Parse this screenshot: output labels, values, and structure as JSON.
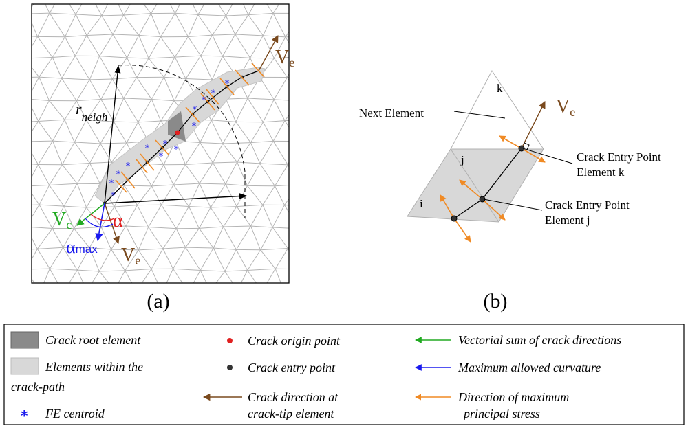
{
  "panel_a": {
    "caption": "(a)",
    "r_label": "r",
    "r_subscript": "neigh",
    "ve_label": "V",
    "ve_subscript": "e",
    "vc_label": "V",
    "vc_subscript": "c",
    "alpha_label": "α",
    "alpha_max_label": "α",
    "alpha_max_subscript": "max"
  },
  "panel_b": {
    "caption": "(b)",
    "next_element": "Next Element",
    "node_k": "k",
    "node_j": "j",
    "node_i": "i",
    "ve_label": "V",
    "ve_subscript": "e",
    "entry_k_line1": "Crack Entry Point",
    "entry_k_line2": "Element k",
    "entry_j_line1": "Crack Entry Point",
    "entry_j_line2": "Element j"
  },
  "legend": {
    "crack_root": "Crack  root element",
    "elements_line1": "Elements within the",
    "elements_line2": "crack-path",
    "fe_centroid": "FE  centroid",
    "origin_point": "Crack origin point",
    "entry_point": "Crack entry point",
    "direction_line1": "Crack direction at",
    "direction_line2": "crack-tip element",
    "vector_sum": "Vectorial sum of crack directions",
    "max_curvature": "Maximum allowed curvature",
    "max_stress_line1": "Direction of maximum",
    "max_stress_line2": "principal stress"
  },
  "colors": {
    "mesh": "#b4b4b4",
    "crack_path_fill": "#d8d8d8",
    "root_fill": "#8a8a8a",
    "brown": "#7a4a1e",
    "orange": "#f08a24",
    "green": "#22aa22",
    "blue": "#1a1aee",
    "red": "#e02020"
  }
}
